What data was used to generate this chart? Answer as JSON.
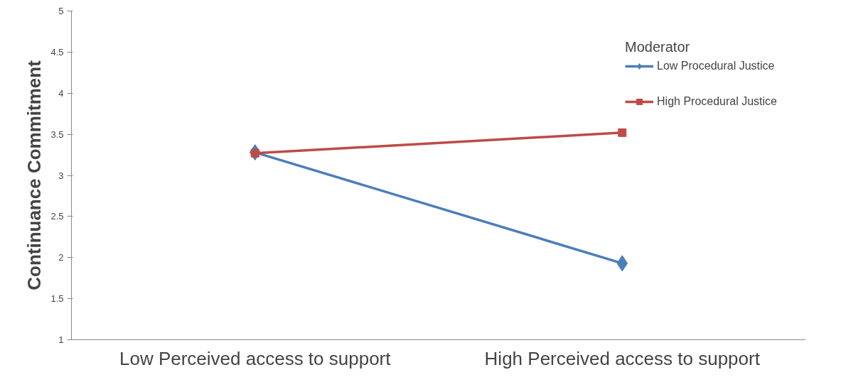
{
  "chart_data": {
    "type": "line",
    "ylabel": "Continuance Commitment",
    "legend_title": "Moderator",
    "categories": [
      "Low Perceived access to support",
      "High Perceived access to support"
    ],
    "series": [
      {
        "name": "Low Procedural Justice",
        "color": "#4a7ebb",
        "marker": "diamond",
        "values": [
          3.28,
          1.93
        ]
      },
      {
        "name": "High Procedural Justice",
        "color": "#be4b48",
        "marker": "square",
        "values": [
          3.27,
          3.52
        ]
      }
    ],
    "ylim": [
      1,
      5
    ],
    "yticks": [
      1,
      1.5,
      2,
      2.5,
      3,
      3.5,
      4,
      4.5,
      5
    ],
    "grid": false,
    "legend": "right"
  }
}
